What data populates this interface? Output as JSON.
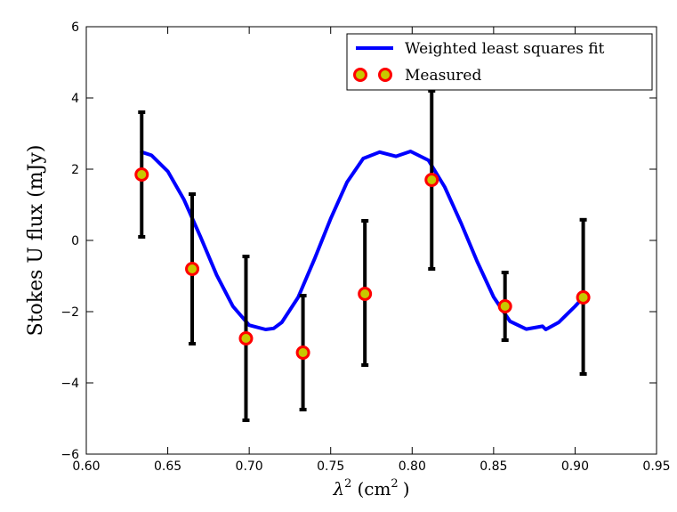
{
  "chart_data": {
    "type": "scatter",
    "title": "",
    "xlabel_symbol": "λ",
    "xlabel_superscript": "2",
    "xlabel_unit_open": "(cm",
    "xlabel_unit_superscript": "2",
    "xlabel_unit_close": ")",
    "ylabel": "Stokes U flux (mJy)",
    "xlim": [
      0.6,
      0.95
    ],
    "ylim": [
      -6,
      6
    ],
    "xticks": [
      0.6,
      0.65,
      0.7,
      0.75,
      0.8,
      0.85,
      0.9,
      0.95
    ],
    "xtick_labels": [
      "0.60",
      "0.65",
      "0.70",
      "0.75",
      "0.80",
      "0.85",
      "0.90",
      "0.95"
    ],
    "yticks": [
      -6,
      -4,
      -2,
      0,
      2,
      4,
      6
    ],
    "ytick_labels": [
      "−6",
      "−4",
      "−2",
      "0",
      "2",
      "4",
      "6"
    ],
    "grid": false,
    "legend_position": "top-right",
    "series": [
      {
        "name": "Weighted least squares fit",
        "kind": "line",
        "color": "#0000ff",
        "x": [
          0.634,
          0.64,
          0.65,
          0.66,
          0.67,
          0.68,
          0.69,
          0.7,
          0.71,
          0.715,
          0.72,
          0.73,
          0.74,
          0.75,
          0.76,
          0.77,
          0.78,
          0.79,
          0.799,
          0.81,
          0.82,
          0.83,
          0.84,
          0.85,
          0.86,
          0.87,
          0.88,
          0.882,
          0.89,
          0.9,
          0.905
        ],
        "y": [
          2.48,
          2.39,
          1.94,
          1.14,
          0.11,
          -0.97,
          -1.85,
          -2.38,
          -2.5,
          -2.47,
          -2.3,
          -1.6,
          -0.53,
          0.61,
          1.63,
          2.3,
          2.48,
          2.36,
          2.5,
          2.25,
          1.5,
          0.49,
          -0.6,
          -1.59,
          -2.27,
          -2.49,
          -2.41,
          -2.5,
          -2.3,
          -1.85,
          -1.6
        ]
      },
      {
        "name": "Measured",
        "kind": "errorbar",
        "marker_face": "#c8c800",
        "marker_edge": "#ff0000",
        "errorbar_color": "#000000",
        "x": [
          0.634,
          0.665,
          0.698,
          0.733,
          0.771,
          0.812,
          0.857,
          0.905
        ],
        "y": [
          1.85,
          -0.8,
          -2.75,
          -3.15,
          -1.5,
          1.7,
          -1.85,
          -1.6
        ],
        "yerr_low": [
          0.1,
          -2.9,
          -5.05,
          -4.75,
          -3.5,
          -0.8,
          -2.8,
          -3.75
        ],
        "yerr_high": [
          3.6,
          1.3,
          -0.45,
          -1.55,
          0.55,
          4.2,
          -0.9,
          0.58
        ]
      }
    ]
  }
}
